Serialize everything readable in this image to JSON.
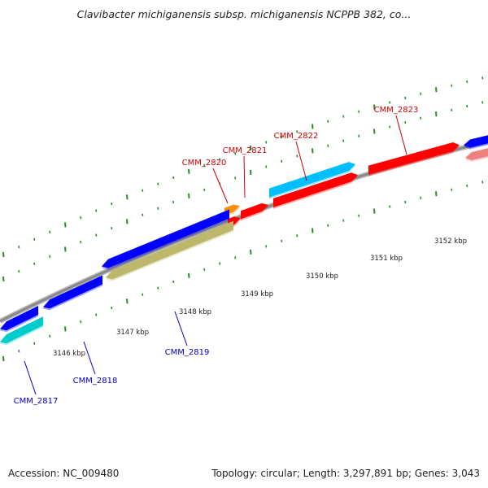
{
  "title": "Clavibacter michiganensis subsp. michiganensis NCPPB 382, co...",
  "footer": {
    "accession": "Accession: NC_009480",
    "topology": "Topology: circular; Length: 3,297,891 bp; Genes: 3,043"
  },
  "colors": {
    "backbone": "#8a8a8a",
    "tick": "#2e8b2e",
    "forward_label": "#cc0000",
    "reverse_label": "#0000bb",
    "forward_cds": "#ff0000",
    "forward_cds_light": "#f08080",
    "other_cds": "#00bfff",
    "reverse_cds": "#0000ff",
    "reverse_cds_cyan": "#00cccc",
    "reverse_cds_olive": "#bdb76b",
    "rna": "#ff8c00"
  },
  "ticks": [
    "3146 kbp",
    "3147 kbp",
    "3148 kbp",
    "3149 kbp",
    "3150 kbp",
    "3151 kbp",
    "3152 kbp"
  ],
  "genes": [
    {
      "label": "CMM_2817",
      "strand": "reverse"
    },
    {
      "label": "CMM_2818",
      "strand": "reverse"
    },
    {
      "label": "CMM_2819",
      "strand": "reverse"
    },
    {
      "label": "CMM_2820",
      "strand": "forward"
    },
    {
      "label": "CMM_2821",
      "strand": "forward"
    },
    {
      "label": "CMM_2822",
      "strand": "forward"
    },
    {
      "label": "CMM_2823",
      "strand": "forward"
    }
  ]
}
